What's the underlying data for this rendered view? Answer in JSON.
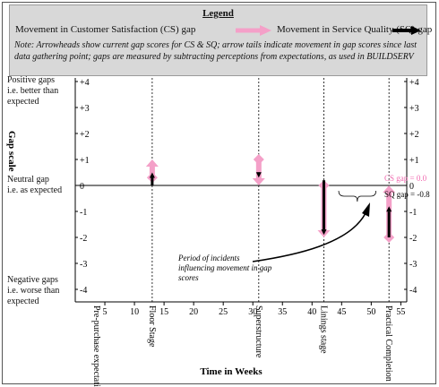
{
  "legend": {
    "title": "Legend",
    "cs_label": "Movement in Customer Satisfaction (CS) gap",
    "sq_label": "Movement in Service Quality (SQ) gap",
    "cs_color": "#f4a0c8",
    "sq_color": "#000000",
    "note": "Note: Arrowheads show current gap scores for CS & SQ; arrow tails indicate movement in gap scores since last data gathering point; gaps are measured by subtracting perceptions from expectations, as used in BUILDSERV"
  },
  "side_labels": {
    "positive": [
      "Positive gaps",
      "i.e. better than",
      "expected"
    ],
    "neutral": [
      "Neutral gap",
      "i.e. as expected"
    ],
    "negative": [
      "Negative gaps",
      "i.e. worse than",
      "expected"
    ]
  },
  "annotations": {
    "period_text": [
      "Period of incidents",
      "influencing movement in gap",
      "scores"
    ],
    "cs_gap_label": "CS gap = 0.0",
    "sq_gap_label": "SQ gap = -0.8"
  },
  "chart_data": {
    "type": "line",
    "xlabel": "Time in Weeks",
    "ylabel": "Gap scale",
    "xlim": [
      0,
      56
    ],
    "ylim": [
      -4,
      4
    ],
    "x_ticks": [
      5,
      10,
      15,
      20,
      25,
      30,
      35,
      40,
      45,
      50,
      55
    ],
    "y_ticks": [
      4,
      3,
      2,
      1,
      0,
      -1,
      -2,
      -3,
      -4
    ],
    "y_tick_labels": [
      "+4",
      "+3",
      "+2",
      "+1",
      "0",
      "-1",
      "-2",
      "-3",
      "-4"
    ],
    "stages": [
      {
        "name": "Pre-purchase expectations",
        "week": 0
      },
      {
        "name": "Floor Stage",
        "week": 13
      },
      {
        "name": "Superstructure",
        "week": 31
      },
      {
        "name": "Linings stage",
        "week": 42
      },
      {
        "name": "Practical Completion",
        "week": 53
      }
    ],
    "series": [
      {
        "name": "Movement in Customer Satisfaction (CS) gap",
        "color": "#f4a0c8",
        "movements": [
          {
            "week": 13,
            "from": 0.3,
            "to": 1.0
          },
          {
            "week": 31,
            "from": 1.0,
            "to": 0.0
          },
          {
            "week": 42,
            "from": 0.0,
            "to": -2.0
          },
          {
            "week": 53,
            "from": -2.0,
            "to": 0.0
          }
        ]
      },
      {
        "name": "Movement in Service Quality (SQ) gap",
        "color": "#000000",
        "movements": [
          {
            "week": 13,
            "from": 0.0,
            "to": 0.5
          },
          {
            "week": 31,
            "from": 0.5,
            "to": 0.3
          },
          {
            "week": 42,
            "from": 0.2,
            "to": -1.9
          },
          {
            "week": 53,
            "from": -2.0,
            "to": -0.8
          }
        ]
      }
    ]
  }
}
